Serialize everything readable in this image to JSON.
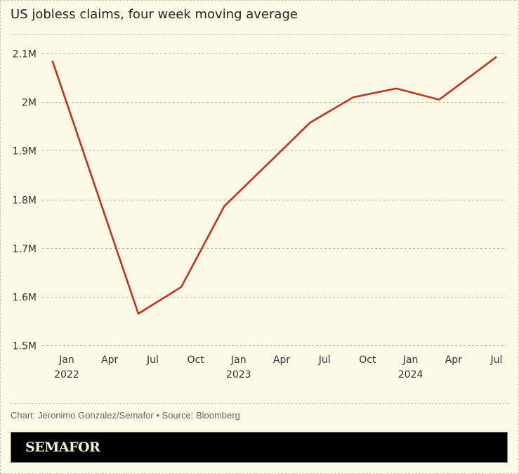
{
  "colors": {
    "background": "#fcf9e6",
    "line": "#c0331f",
    "grid": "#b9b6a8",
    "brand_bar": "#000000",
    "brand_text": "#f3efd6"
  },
  "credits": "Chart: Jeronimo Gonzalez/Semafor • Source: Bloomberg",
  "brand": "SEMAFOR",
  "chart_data": {
    "type": "line",
    "title": "US jobless claims, four week moving average",
    "xlabel": "",
    "ylabel": "",
    "ylim": [
      1500000,
      2100000
    ],
    "y_ticks": [
      {
        "value": 2100000,
        "label": "2.1M"
      },
      {
        "value": 2000000,
        "label": "2M"
      },
      {
        "value": 1900000,
        "label": "1.9M"
      },
      {
        "value": 1800000,
        "label": "1.8M"
      },
      {
        "value": 1700000,
        "label": "1.7M"
      },
      {
        "value": 1600000,
        "label": "1.6M"
      },
      {
        "value": 1500000,
        "label": "1.5M"
      }
    ],
    "x_range_months": [
      "2021-12",
      "2024-07"
    ],
    "x_ticks": [
      {
        "month": "2022-01",
        "label": "Jan",
        "sublabel": "2022"
      },
      {
        "month": "2022-04",
        "label": "Apr",
        "sublabel": ""
      },
      {
        "month": "2022-07",
        "label": "Jul",
        "sublabel": ""
      },
      {
        "month": "2022-10",
        "label": "Oct",
        "sublabel": ""
      },
      {
        "month": "2023-01",
        "label": "Jan",
        "sublabel": "2023"
      },
      {
        "month": "2023-04",
        "label": "Apr",
        "sublabel": ""
      },
      {
        "month": "2023-07",
        "label": "Jul",
        "sublabel": ""
      },
      {
        "month": "2023-10",
        "label": "Oct",
        "sublabel": ""
      },
      {
        "month": "2024-01",
        "label": "Jan",
        "sublabel": "2024"
      },
      {
        "month": "2024-04",
        "label": "Apr",
        "sublabel": ""
      },
      {
        "month": "2024-07",
        "label": "Jul",
        "sublabel": ""
      }
    ],
    "grid": true,
    "legend": "none",
    "series": [
      {
        "name": "US jobless claims (4-week moving average)",
        "points": [
          {
            "month": "2021-12",
            "value": 2085000
          },
          {
            "month": "2022-06",
            "value": 1565000
          },
          {
            "month": "2022-09",
            "value": 1620000
          },
          {
            "month": "2022-12",
            "value": 1786000
          },
          {
            "month": "2023-06",
            "value": 1958000
          },
          {
            "month": "2023-09",
            "value": 2010000
          },
          {
            "month": "2023-12",
            "value": 2028000
          },
          {
            "month": "2024-03",
            "value": 2005000
          },
          {
            "month": "2024-07",
            "value": 2093000
          }
        ]
      }
    ]
  }
}
